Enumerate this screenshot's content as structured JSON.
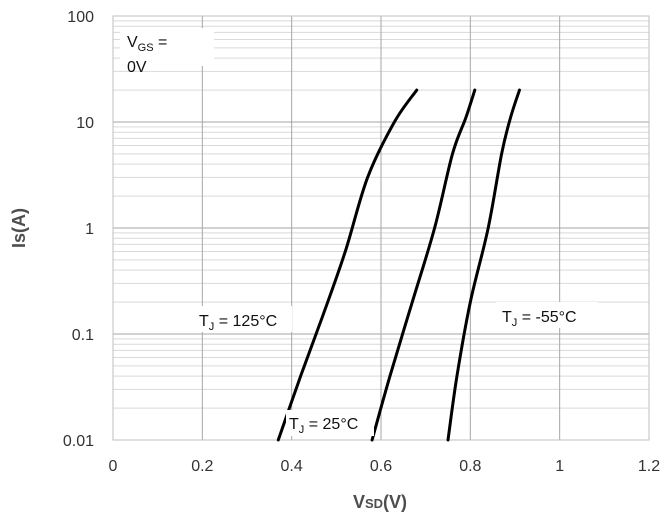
{
  "chart_data": {
    "type": "line",
    "title": "",
    "xlabel": {
      "main": "V",
      "sub": "SD",
      "rest": "(V)"
    },
    "ylabel": "Is(A)",
    "xlim": [
      0,
      1.2
    ],
    "ylim": [
      0.01,
      100
    ],
    "yscale": "log",
    "x_ticks": [
      0,
      0.2,
      0.4,
      0.6,
      0.8,
      1,
      1.2
    ],
    "x_tick_labels": [
      "0",
      "0.2",
      "0.4",
      "0.6",
      "0.8",
      "1",
      "1.2"
    ],
    "y_ticks": [
      0.01,
      0.1,
      1,
      10,
      100
    ],
    "y_tick_labels": [
      "0.01",
      "0.1",
      "1",
      "10",
      "100"
    ],
    "grid": true,
    "line_color": "#000000",
    "series": [
      {
        "name": "TJ = 125°C",
        "x": [
          0.37,
          0.42,
          0.47,
          0.52,
          0.57,
          0.63,
          0.68
        ],
        "y": [
          0.01,
          0.04,
          0.15,
          0.6,
          3.0,
          10,
          20
        ]
      },
      {
        "name": "TJ = 25°C",
        "x": [
          0.58,
          0.62,
          0.67,
          0.72,
          0.76,
          0.79,
          0.81
        ],
        "y": [
          0.01,
          0.04,
          0.2,
          1.0,
          5.0,
          11,
          20
        ]
      },
      {
        "name": "TJ = -55°C",
        "x": [
          0.75,
          0.77,
          0.8,
          0.84,
          0.87,
          0.89,
          0.91
        ],
        "y": [
          0.01,
          0.04,
          0.2,
          1.0,
          5.0,
          11,
          20
        ]
      }
    ],
    "annotations": [
      {
        "id": "vgs",
        "main": "V",
        "sub": "GS",
        "rest": " =",
        "line2": "0V"
      },
      {
        "id": "tj125",
        "main": "T",
        "sub": "J",
        "rest": " = 125°C"
      },
      {
        "id": "tj25",
        "main": "T",
        "sub": "J",
        "rest": " = 25°C"
      },
      {
        "id": "tjm55",
        "main": "T",
        "sub": "J",
        "rest": " = -55°C"
      }
    ]
  }
}
